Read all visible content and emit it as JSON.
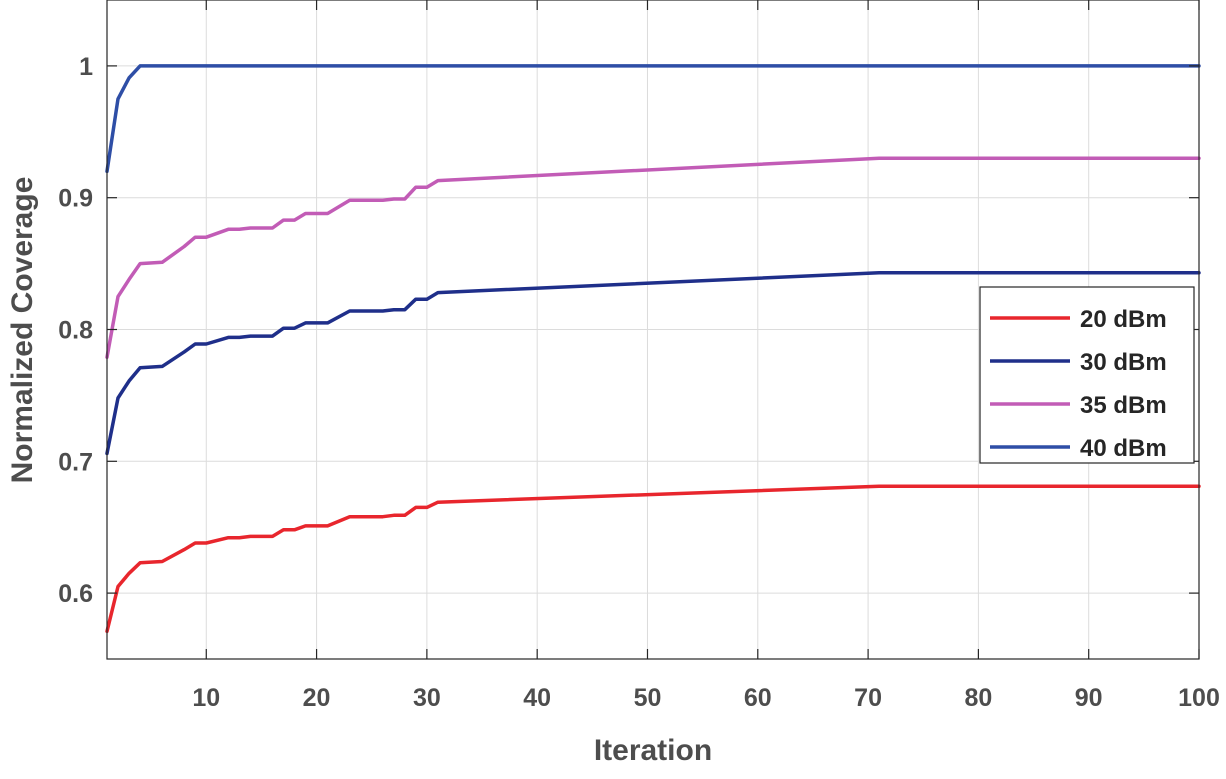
{
  "chart_data": {
    "type": "line",
    "title": "",
    "xlabel": "Iteration",
    "ylabel": "Normalized Coverage",
    "xlim": [
      1,
      100
    ],
    "ylim": [
      0.55,
      1.05
    ],
    "xticks": [
      10,
      20,
      30,
      40,
      50,
      60,
      70,
      80,
      90,
      100
    ],
    "xtick_labels": [
      "10",
      "20",
      "30",
      "40",
      "50",
      "60",
      "70",
      "80",
      "90",
      "100"
    ],
    "yticks": [
      0.6,
      0.7,
      0.8,
      0.9,
      1.0
    ],
    "ytick_labels": [
      "0.6",
      "0.7",
      "0.8",
      "0.9",
      "1"
    ],
    "grid": true,
    "legend_position": "right",
    "series": [
      {
        "name": "20 dBm",
        "color": "#e8262d",
        "x": [
          1,
          2,
          3,
          4,
          6,
          8,
          9,
          10,
          12,
          13,
          14,
          15,
          16,
          17,
          18,
          19,
          20,
          21,
          23,
          24,
          26,
          27,
          28,
          29,
          30,
          31,
          71,
          100
        ],
        "y": [
          0.571,
          0.605,
          0.615,
          0.623,
          0.624,
          0.633,
          0.638,
          0.638,
          0.642,
          0.642,
          0.643,
          0.643,
          0.643,
          0.648,
          0.648,
          0.651,
          0.651,
          0.651,
          0.658,
          0.658,
          0.658,
          0.659,
          0.659,
          0.665,
          0.665,
          0.669,
          0.681,
          0.681
        ]
      },
      {
        "name": "30 dBm",
        "color": "#1f2f8a",
        "x": [
          1,
          2,
          3,
          4,
          6,
          8,
          9,
          10,
          12,
          13,
          14,
          15,
          16,
          17,
          18,
          19,
          20,
          21,
          23,
          24,
          26,
          27,
          28,
          29,
          30,
          31,
          71,
          100
        ],
        "y": [
          0.706,
          0.748,
          0.761,
          0.771,
          0.772,
          0.783,
          0.789,
          0.789,
          0.794,
          0.794,
          0.795,
          0.795,
          0.795,
          0.801,
          0.801,
          0.805,
          0.805,
          0.805,
          0.814,
          0.814,
          0.814,
          0.815,
          0.815,
          0.823,
          0.823,
          0.828,
          0.843,
          0.843
        ]
      },
      {
        "name": "35 dBm",
        "color": "#c25cb6",
        "x": [
          1,
          2,
          3,
          4,
          6,
          8,
          9,
          10,
          12,
          13,
          14,
          15,
          16,
          17,
          18,
          19,
          20,
          21,
          23,
          24,
          26,
          27,
          28,
          29,
          30,
          31,
          71,
          100
        ],
        "y": [
          0.779,
          0.825,
          0.838,
          0.85,
          0.851,
          0.863,
          0.87,
          0.87,
          0.876,
          0.876,
          0.877,
          0.877,
          0.877,
          0.883,
          0.883,
          0.888,
          0.888,
          0.888,
          0.898,
          0.898,
          0.898,
          0.899,
          0.899,
          0.908,
          0.908,
          0.913,
          0.93,
          0.93
        ]
      },
      {
        "name": "40 dBm",
        "color": "#2e4ea6",
        "x": [
          1,
          2,
          3,
          4,
          100
        ],
        "y": [
          0.92,
          0.975,
          0.991,
          1.0,
          1.0
        ]
      }
    ]
  }
}
